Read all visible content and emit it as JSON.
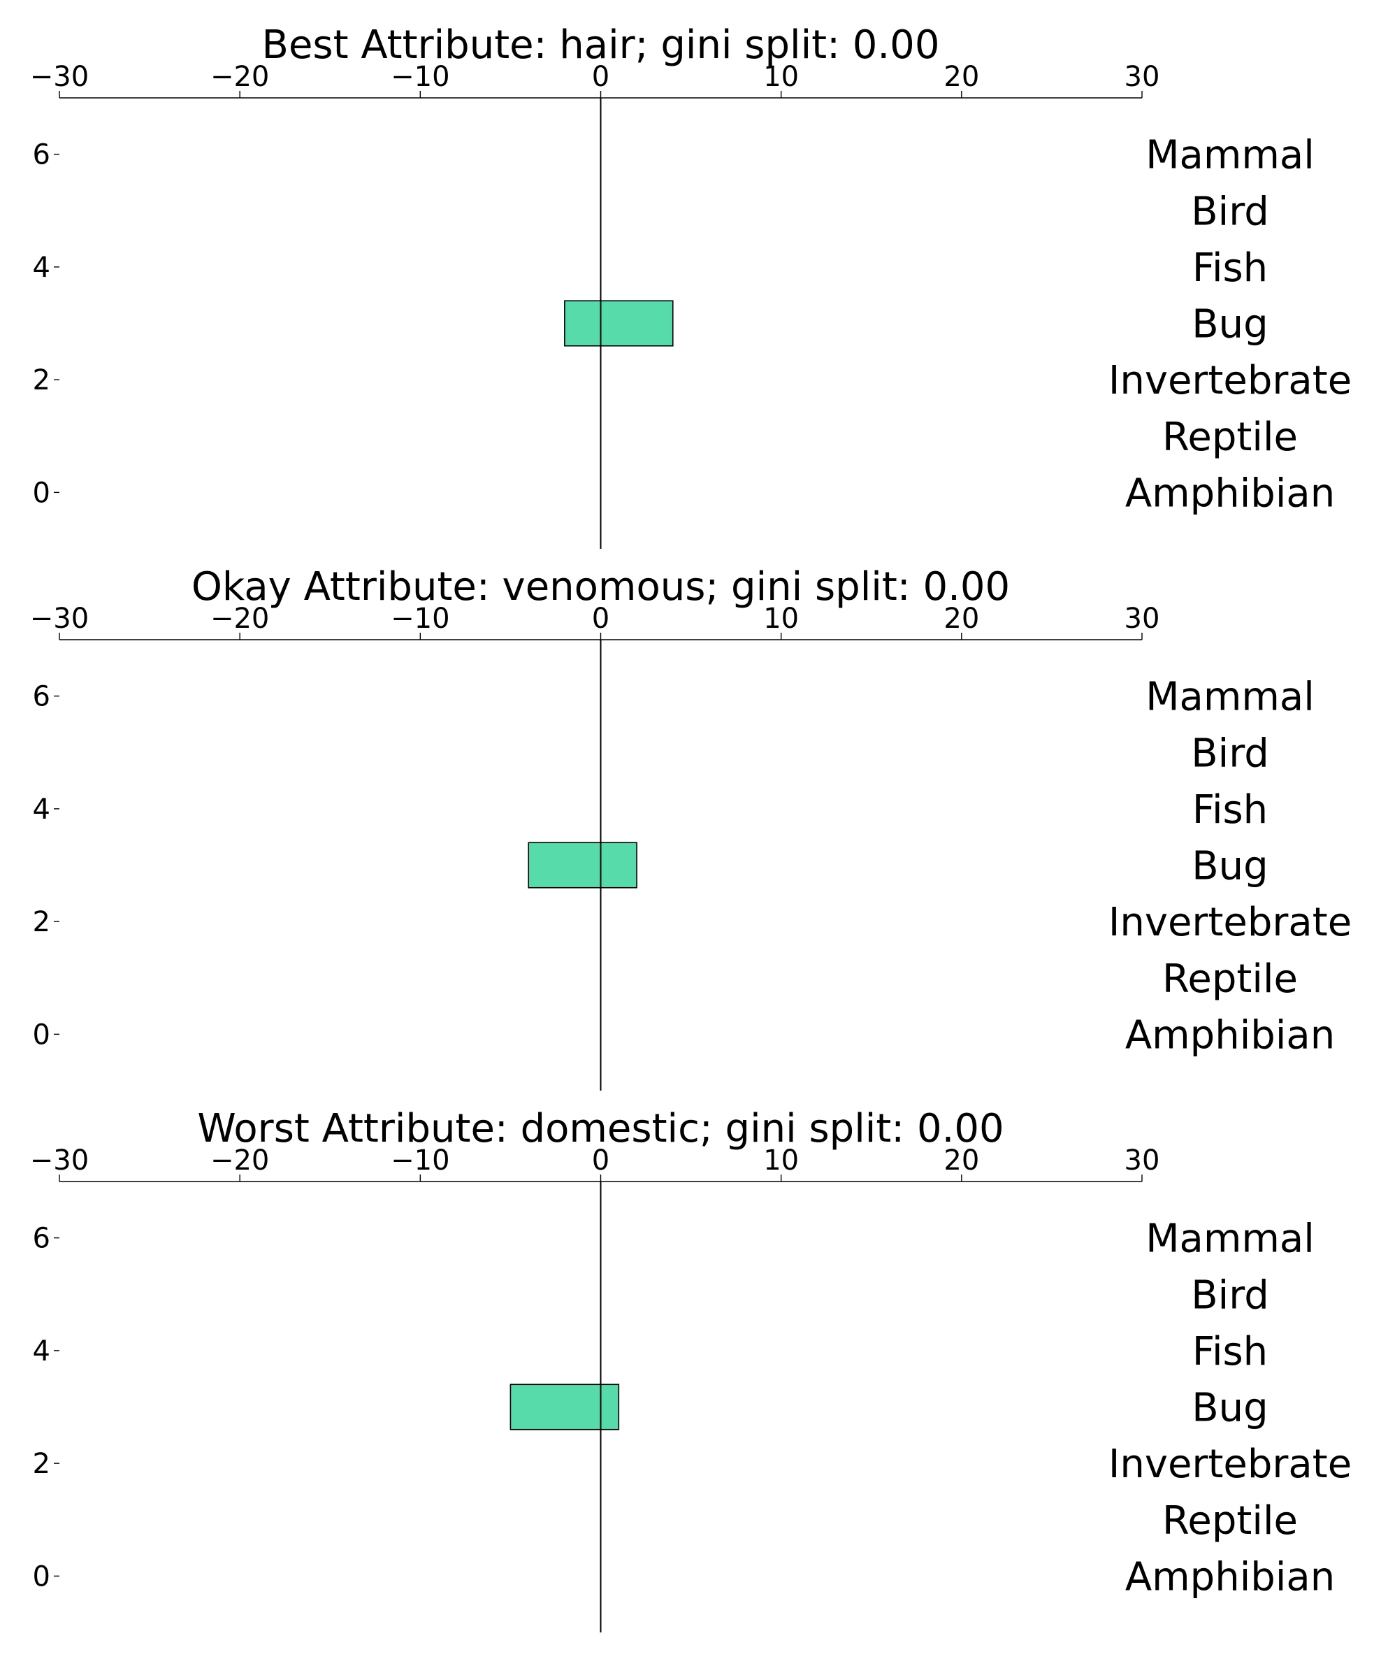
{
  "chart_data": [
    {
      "type": "bar",
      "orientation": "horizontal",
      "title": "Best Attribute: hair; gini split: 0.00",
      "xlim": [
        -30,
        30
      ],
      "ylim": [
        -1,
        7
      ],
      "x_ticks": [
        -30,
        -20,
        -10,
        0,
        10,
        20,
        30
      ],
      "x_tick_labels": [
        "−30",
        "−20",
        "−10",
        "0",
        "10",
        "20",
        "30"
      ],
      "y_ticks": [
        0,
        2,
        4,
        6
      ],
      "y_tick_labels": [
        "0",
        "2",
        "4",
        "6"
      ],
      "x_axis_position": "top",
      "grid": false,
      "categories": [
        "Mammal",
        "Bird",
        "Fish",
        "Bug",
        "Invertebrate",
        "Reptile",
        "Amphibian"
      ],
      "category_positions": [
        6,
        5,
        4,
        3,
        2,
        1,
        0
      ],
      "bars": [
        {
          "y": 3,
          "left": -2,
          "right": 4,
          "color": "#57dbab"
        }
      ]
    },
    {
      "type": "bar",
      "orientation": "horizontal",
      "title": "Okay Attribute: venomous; gini split: 0.00",
      "xlim": [
        -30,
        30
      ],
      "ylim": [
        -1,
        7
      ],
      "x_ticks": [
        -30,
        -20,
        -10,
        0,
        10,
        20,
        30
      ],
      "x_tick_labels": [
        "−30",
        "−20",
        "−10",
        "0",
        "10",
        "20",
        "30"
      ],
      "y_ticks": [
        0,
        2,
        4,
        6
      ],
      "y_tick_labels": [
        "0",
        "2",
        "4",
        "6"
      ],
      "x_axis_position": "top",
      "grid": false,
      "categories": [
        "Mammal",
        "Bird",
        "Fish",
        "Bug",
        "Invertebrate",
        "Reptile",
        "Amphibian"
      ],
      "category_positions": [
        6,
        5,
        4,
        3,
        2,
        1,
        0
      ],
      "bars": [
        {
          "y": 3,
          "left": -4,
          "right": 2,
          "color": "#57dbab"
        }
      ]
    },
    {
      "type": "bar",
      "orientation": "horizontal",
      "title": "Worst Attribute: domestic; gini split: 0.00",
      "xlim": [
        -30,
        30
      ],
      "ylim": [
        -1,
        7
      ],
      "x_ticks": [
        -30,
        -20,
        -10,
        0,
        10,
        20,
        30
      ],
      "x_tick_labels": [
        "−30",
        "−20",
        "−10",
        "0",
        "10",
        "20",
        "30"
      ],
      "y_ticks": [
        0,
        2,
        4,
        6
      ],
      "y_tick_labels": [
        "0",
        "2",
        "4",
        "6"
      ],
      "x_axis_position": "top",
      "grid": false,
      "categories": [
        "Mammal",
        "Bird",
        "Fish",
        "Bug",
        "Invertebrate",
        "Reptile",
        "Amphibian"
      ],
      "category_positions": [
        6,
        5,
        4,
        3,
        2,
        1,
        0
      ],
      "bars": [
        {
          "y": 3,
          "left": -5,
          "right": 1,
          "color": "#57dbab"
        }
      ]
    }
  ]
}
